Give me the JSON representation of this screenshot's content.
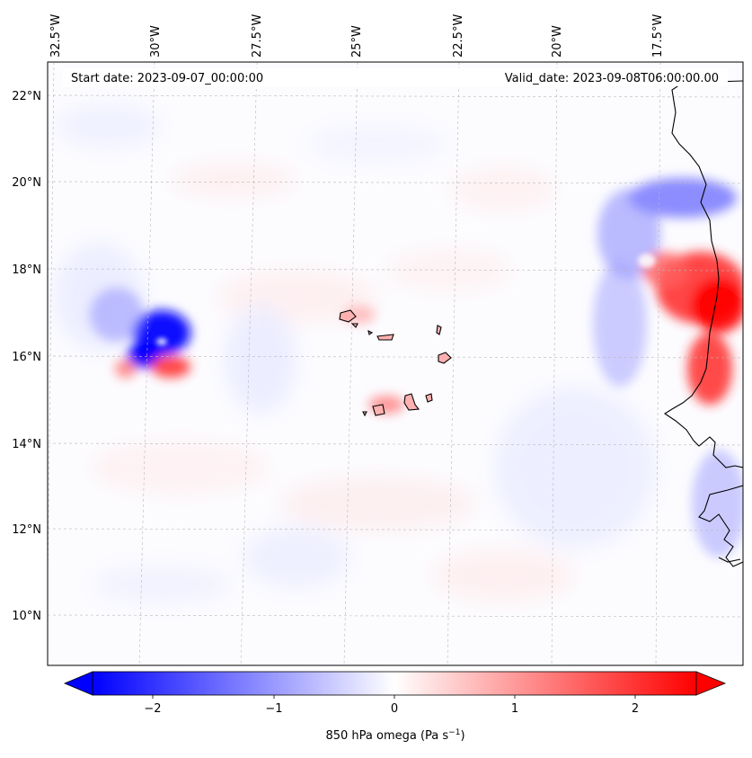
{
  "map": {
    "start_date": "Start date: 2023-09-07_00:00:00",
    "valid_date": "Valid_date: 2023-09-08T06:00:00.00",
    "lon_labels": [
      "32.5°W",
      "30°W",
      "27.5°W",
      "25°W",
      "22.5°W",
      "20°W",
      "17.5°W"
    ],
    "lat_labels": [
      "22°N",
      "20°N",
      "18°N",
      "16°N",
      "14°N",
      "12°N",
      "10°N"
    ]
  },
  "colorbar": {
    "ticks": [
      "−2",
      "−1",
      "0",
      "1",
      "2"
    ],
    "label_main": "850 hPa omega (Pa s",
    "label_sup": "−1",
    "label_end": ")",
    "range": [
      -2.6,
      2.6
    ],
    "colors": {
      "negative": "#0000ff",
      "zero": "#ffffff",
      "positive": "#ff0000"
    }
  }
}
